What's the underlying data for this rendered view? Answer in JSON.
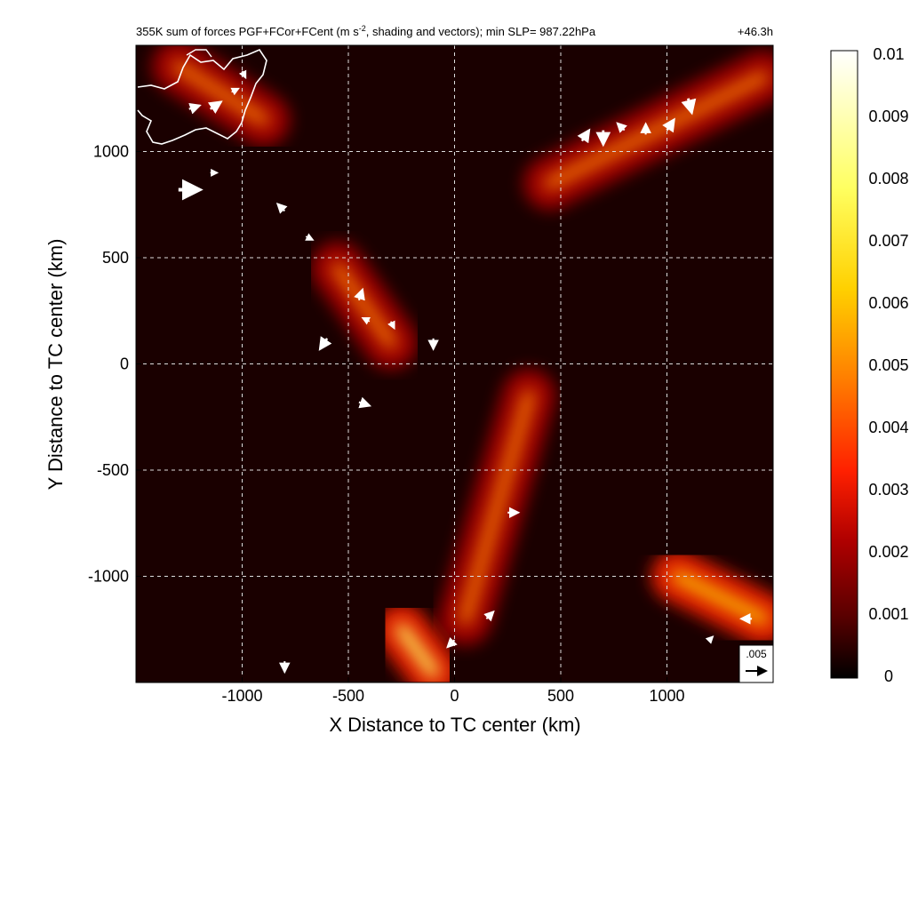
{
  "chart_data": {
    "type": "heatmap",
    "title": "355K sum of forces PGF+FCor+FCent (m s",
    "title_sup": "-2",
    "title_rest": ", shading and vectors); min SLP= 987.22hPa",
    "time_label": "+46.3h",
    "xlabel": "X Distance to TC center (km)",
    "ylabel": "Y Distance to TC center (km)",
    "xlim": [
      -1500,
      1500
    ],
    "ylim": [
      -1500,
      1500
    ],
    "xticks": [
      -1000,
      -500,
      0,
      500,
      1000
    ],
    "yticks": [
      -1000,
      -500,
      0,
      500,
      1000
    ],
    "xtick_labels": [
      "-1000",
      "-500",
      "0",
      "500",
      "1000"
    ],
    "ytick_labels": [
      "-1000",
      "-500",
      "0",
      "500",
      "1000"
    ],
    "grid": true,
    "colorbar": {
      "min": 0,
      "max": 0.01,
      "ticks": [
        "0.01",
        "0.009",
        "0.008",
        "0.007",
        "0.006",
        "0.005",
        "0.004",
        "0.003",
        "0.002",
        "0.001",
        "0"
      ],
      "colors": [
        "#000000",
        "#5a0000",
        "#b00000",
        "#ff2000",
        "#ff8000",
        "#ffd000",
        "#ffff60",
        "#ffffff"
      ]
    },
    "reference_vector": {
      "value": ".005"
    },
    "features": [
      {
        "name": "northeast band",
        "x0": 450,
        "y0": 850,
        "x1": 1450,
        "y1": 1350,
        "max": 0.006
      },
      {
        "name": "central cluster",
        "x0": -550,
        "y0": 450,
        "x1": -300,
        "y1": 100,
        "max": 0.006
      },
      {
        "name": "southern band",
        "x0": 350,
        "y0": -150,
        "x1": 50,
        "y1": -1200,
        "max": 0.005
      },
      {
        "name": "southeast cluster",
        "x0": 1050,
        "y0": -1000,
        "x1": 1450,
        "y1": -1200,
        "max": 0.007
      },
      {
        "name": "south cluster",
        "x0": -250,
        "y0": -1250,
        "x1": -100,
        "y1": -1450,
        "max": 0.008
      },
      {
        "name": "northwest coast",
        "x0": -1300,
        "y0": 1400,
        "x1": -900,
        "y1": 1150,
        "max": 0.006
      }
    ],
    "vectors": [
      {
        "x": -1300,
        "y": 820,
        "u": 0.006,
        "v": 0.0
      },
      {
        "x": -1250,
        "y": 1200,
        "u": 0.003,
        "v": 0.001
      },
      {
        "x": -1150,
        "y": 1200,
        "u": 0.003,
        "v": 0.002
      },
      {
        "x": -1050,
        "y": 1280,
        "u": 0.002,
        "v": 0.001
      },
      {
        "x": -1000,
        "y": 1380,
        "u": 0.001,
        "v": -0.002
      },
      {
        "x": -1150,
        "y": 900,
        "u": 0.002,
        "v": 0.0
      },
      {
        "x": -800,
        "y": 720,
        "u": -0.002,
        "v": 0.002
      },
      {
        "x": -700,
        "y": 600,
        "u": 0.002,
        "v": -0.001
      },
      {
        "x": -450,
        "y": 300,
        "u": 0.001,
        "v": 0.003
      },
      {
        "x": -400,
        "y": 200,
        "u": -0.002,
        "v": 0.001
      },
      {
        "x": -300,
        "y": 200,
        "u": 0.001,
        "v": -0.002
      },
      {
        "x": -600,
        "y": 120,
        "u": -0.002,
        "v": -0.003
      },
      {
        "x": -450,
        "y": -180,
        "u": 0.003,
        "v": -0.001
      },
      {
        "x": -100,
        "y": 120,
        "u": 0.0,
        "v": -0.003
      },
      {
        "x": 250,
        "y": -700,
        "u": 0.003,
        "v": 0.0
      },
      {
        "x": 150,
        "y": -1200,
        "u": 0.002,
        "v": 0.002
      },
      {
        "x": 0,
        "y": -1300,
        "u": -0.002,
        "v": -0.002
      },
      {
        "x": -800,
        "y": -1400,
        "u": 0.0,
        "v": -0.003
      },
      {
        "x": 600,
        "y": 1050,
        "u": 0.002,
        "v": 0.003
      },
      {
        "x": 700,
        "y": 1100,
        "u": 0.0,
        "v": -0.004
      },
      {
        "x": 800,
        "y": 1100,
        "u": -0.002,
        "v": 0.002
      },
      {
        "x": 900,
        "y": 1080,
        "u": 0.0,
        "v": 0.003
      },
      {
        "x": 1000,
        "y": 1100,
        "u": 0.002,
        "v": 0.003
      },
      {
        "x": 1100,
        "y": 1250,
        "u": 0.001,
        "v": -0.004
      },
      {
        "x": 1400,
        "y": -1200,
        "u": -0.003,
        "v": 0.0
      },
      {
        "x": 1200,
        "y": -1300,
        "u": 0.001,
        "v": 0.001
      }
    ]
  }
}
